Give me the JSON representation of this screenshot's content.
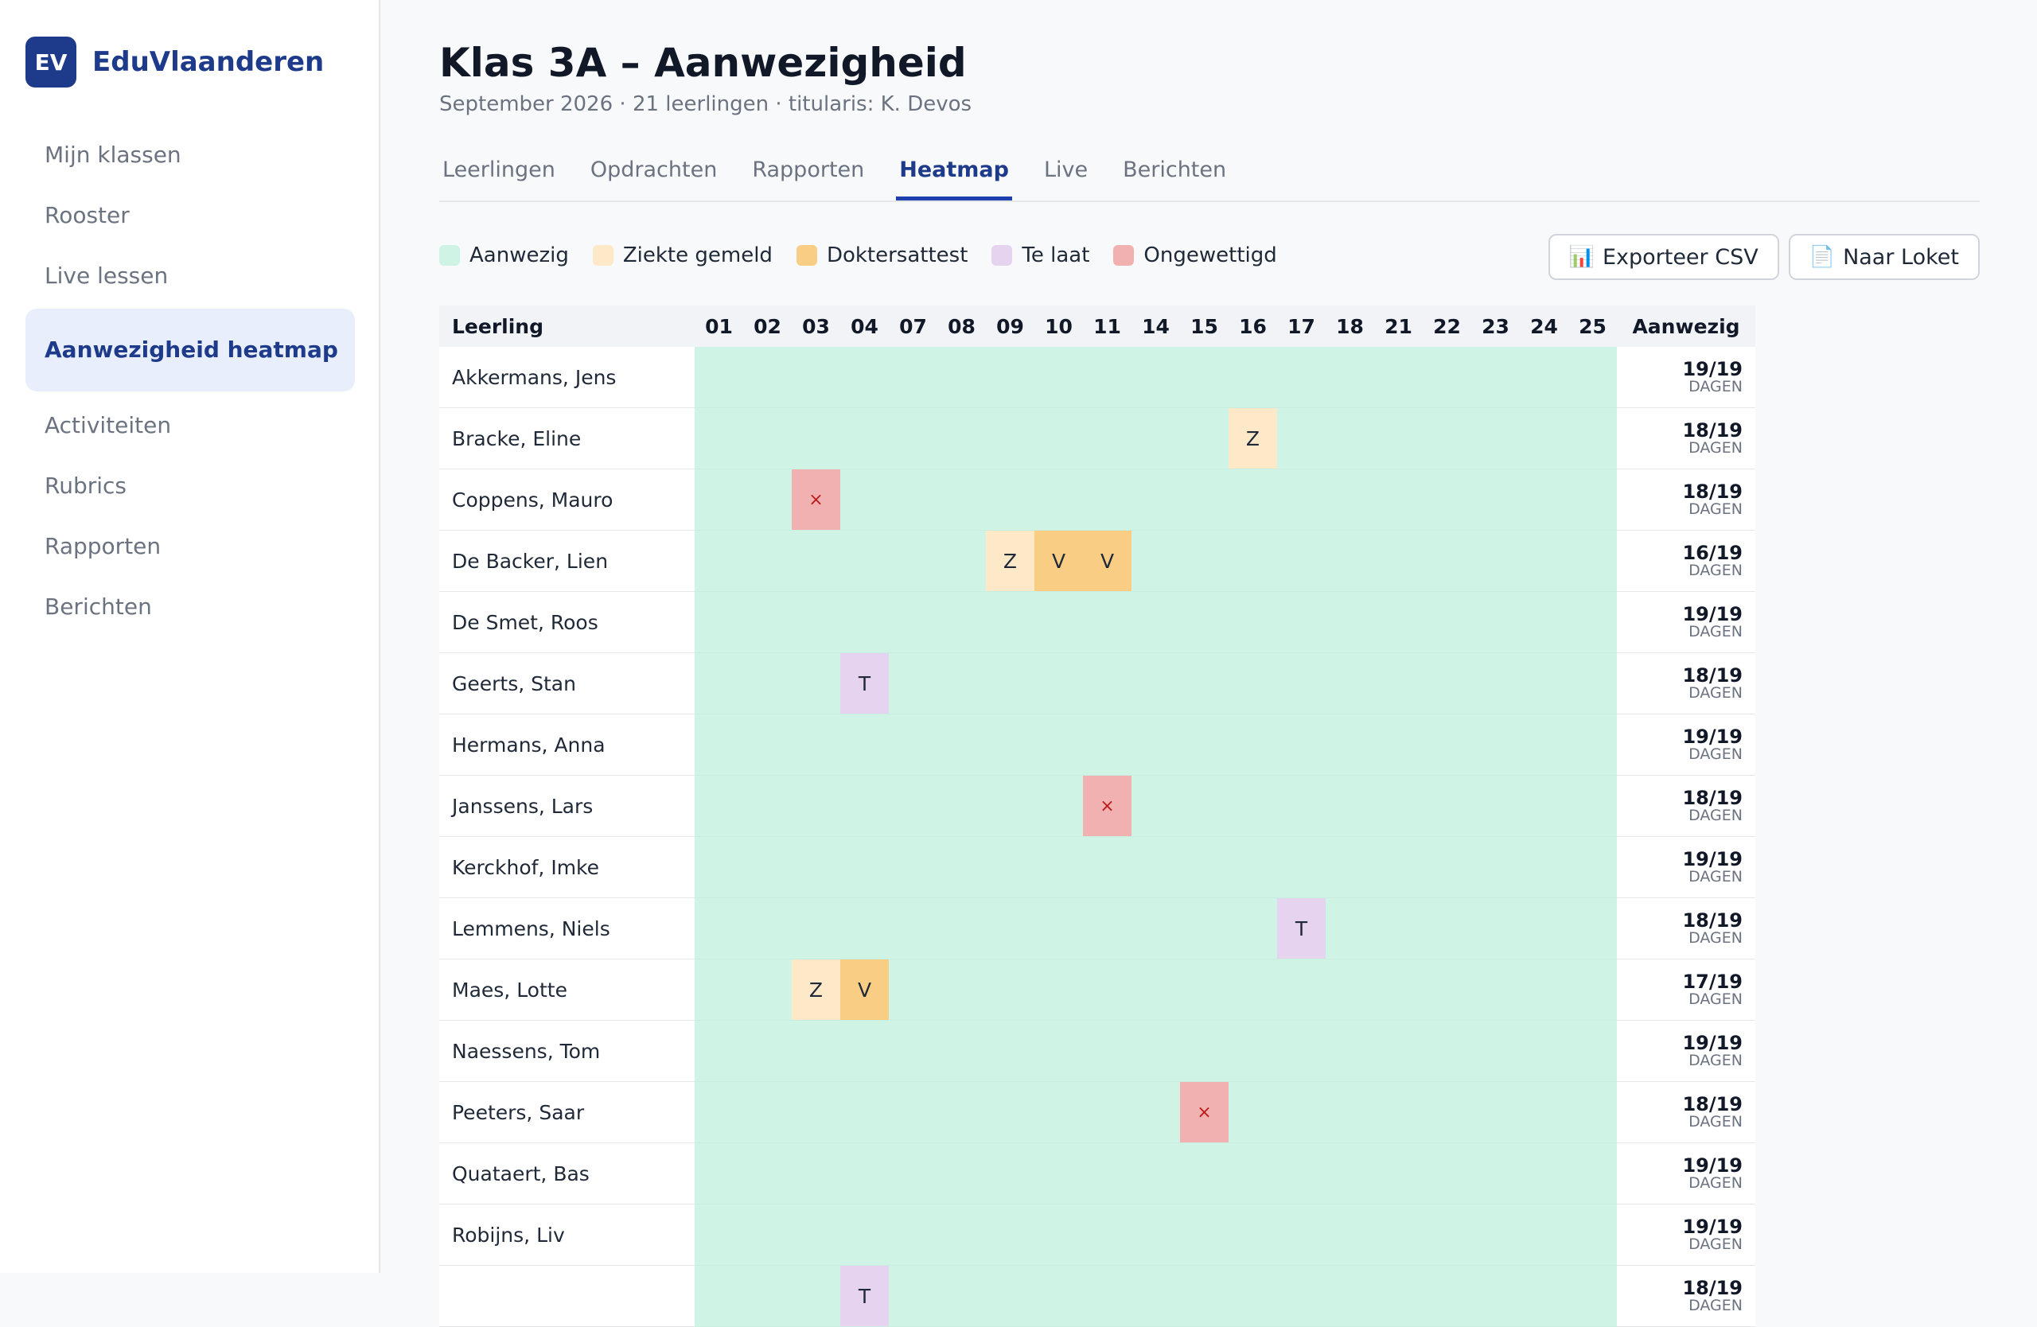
{
  "sidebar": {
    "brand_logo": "EV",
    "brand_name": "EduVlaanderen",
    "items": [
      "Mijn klassen",
      "Rooster",
      "Live lessen",
      "Aanwezigheid heatmap",
      "Activiteiten",
      "Rubrics",
      "Rapporten",
      "Berichten"
    ],
    "active_index": 3
  },
  "header": {
    "title": "Klas 3A – Aanwezigheid",
    "subtitle": "September 2026 · 21 leerlingen · titularis: K. Devos"
  },
  "tabs": [
    "Leerlingen",
    "Opdrachten",
    "Rapporten",
    "Heatmap",
    "Live",
    "Berichten"
  ],
  "active_tab": 3,
  "legend": [
    {
      "code": "A",
      "label": "Aanwezig",
      "color": "#cff3e4",
      "mark": ""
    },
    {
      "code": "Z",
      "label": "Ziekte gemeld",
      "color": "#fde8c8",
      "mark": "Z"
    },
    {
      "code": "V",
      "label": "Doktersattest",
      "color": "#f9cd84",
      "mark": "V"
    },
    {
      "code": "T",
      "label": "Te laat",
      "color": "#e6d3f0",
      "mark": "T"
    },
    {
      "code": "X",
      "label": "Ongewettigd",
      "color": "#f2b1b1",
      "mark": "×"
    }
  ],
  "actions": {
    "export_icon": "chart-icon",
    "export_label": "Exporteer CSV",
    "loket_icon": "document-icon",
    "loket_label": "Naar Loket"
  },
  "table": {
    "name_header": "Leerling",
    "total_header": "Aanwezig",
    "unit": "DAGEN",
    "days": [
      "01",
      "02",
      "03",
      "04",
      "07",
      "08",
      "09",
      "10",
      "11",
      "14",
      "15",
      "16",
      "17",
      "18",
      "21",
      "22",
      "23",
      "24",
      "25"
    ],
    "rows": [
      {
        "name": "Akkermans, Jens",
        "cells": "AAAAAAAAAAAAAAAAAAA",
        "total": "19/19"
      },
      {
        "name": "Bracke, Eline",
        "cells": "AAAAAAAAAAAZAAAAAAA",
        "total": "18/19"
      },
      {
        "name": "Coppens, Mauro",
        "cells": "AAXAAAAAAAAAAAAAAAA",
        "total": "18/19"
      },
      {
        "name": "De Backer, Lien",
        "cells": "AAAAAAZVVAAAAAAAAAA",
        "total": "16/19"
      },
      {
        "name": "De Smet, Roos",
        "cells": "AAAAAAAAAAAAAAAAAAA",
        "total": "19/19"
      },
      {
        "name": "Geerts, Stan",
        "cells": "AAATAAAAAAAAAAAAAAA",
        "total": "18/19"
      },
      {
        "name": "Hermans, Anna",
        "cells": "AAAAAAAAAAAAAAAAAAA",
        "total": "19/19"
      },
      {
        "name": "Janssens, Lars",
        "cells": "AAAAAAAAXAAAAAAAAAA",
        "total": "18/19"
      },
      {
        "name": "Kerckhof, Imke",
        "cells": "AAAAAAAAAAAAAAAAAAA",
        "total": "19/19"
      },
      {
        "name": "Lemmens, Niels",
        "cells": "AAAAAAAAAAAATAAAAAA",
        "total": "18/19"
      },
      {
        "name": "Maes, Lotte",
        "cells": "AAZVAAAAAAAAAAAAAAA",
        "total": "17/19"
      },
      {
        "name": "Naessens, Tom",
        "cells": "AAAAAAAAAAAAAAAAAAA",
        "total": "19/19"
      },
      {
        "name": "Peeters, Saar",
        "cells": "AAAAAAAAAAXAAAAAAAA",
        "total": "18/19"
      },
      {
        "name": "Quataert, Bas",
        "cells": "AAAAAAAAAAAAAAAAAAA",
        "total": "19/19"
      },
      {
        "name": "Robijns, Liv",
        "cells": "AAAAAAAAAAAAAAAAAAA",
        "total": "19/19"
      },
      {
        "name": "",
        "cells": "AAATAAAAAAAAAAAAAAA",
        "total": "18/19"
      }
    ]
  }
}
